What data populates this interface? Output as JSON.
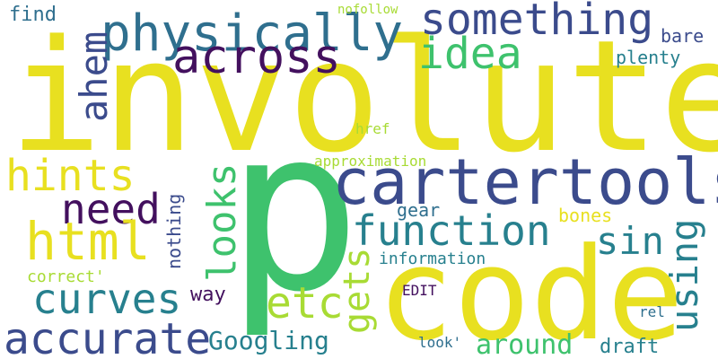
{
  "wordcloud": {
    "words": [
      {
        "text": "involute",
        "color": "#e8e020"
      },
      {
        "text": "p",
        "color": "#3ec26d"
      },
      {
        "text": "code",
        "color": "#e8e020"
      },
      {
        "text": "cartertools",
        "color": "#3b4b8c"
      },
      {
        "text": "physically",
        "color": "#2f6f8e"
      },
      {
        "text": "something",
        "color": "#3b4b8c"
      },
      {
        "text": "across",
        "color": "#43105e"
      },
      {
        "text": "idea",
        "color": "#3ec26d"
      },
      {
        "text": "ahem",
        "color": "#3b4b8c"
      },
      {
        "text": "find",
        "color": "#2f6f8e"
      },
      {
        "text": "nofollow",
        "color": "#a8db34"
      },
      {
        "text": "bare",
        "color": "#3b4b8c"
      },
      {
        "text": "plenty",
        "color": "#27808e"
      },
      {
        "text": "hints",
        "color": "#e8e020"
      },
      {
        "text": "need",
        "color": "#43105e"
      },
      {
        "text": "html",
        "color": "#e8e020"
      },
      {
        "text": "looks",
        "color": "#3ec26d"
      },
      {
        "text": "function",
        "color": "#27808e"
      },
      {
        "text": "sin",
        "color": "#27808e"
      },
      {
        "text": "using",
        "color": "#27808e"
      },
      {
        "text": "curves",
        "color": "#27808e"
      },
      {
        "text": "etc",
        "color": "#a8db34"
      },
      {
        "text": "gets",
        "color": "#a8db34"
      },
      {
        "text": "accurate",
        "color": "#3b4b8c"
      },
      {
        "text": "Googling",
        "color": "#27808e"
      },
      {
        "text": "around",
        "color": "#3ec26d"
      },
      {
        "text": "draft",
        "color": "#27808e"
      },
      {
        "text": "href",
        "color": "#a8db34"
      },
      {
        "text": "approximation",
        "color": "#a8db34"
      },
      {
        "text": "gear",
        "color": "#2f6f8e"
      },
      {
        "text": "bones",
        "color": "#e8e020"
      },
      {
        "text": "information",
        "color": "#27808e"
      },
      {
        "text": "nothing",
        "color": "#3b4b8c"
      },
      {
        "text": "way",
        "color": "#43105e"
      },
      {
        "text": "correct'",
        "color": "#a8db34"
      },
      {
        "text": "EDIT",
        "color": "#43105e"
      },
      {
        "text": "rel",
        "color": "#2f6f8e"
      },
      {
        "text": "look'",
        "color": "#2f6f8e"
      }
    ]
  }
}
